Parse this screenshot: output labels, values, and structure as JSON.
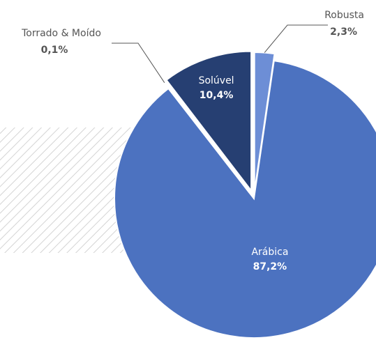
{
  "chart_data": {
    "type": "pie",
    "categories": [
      "Robusta",
      "Arábica",
      "Torrado & Moído",
      "Solúvel"
    ],
    "values": [
      2.3,
      87.2,
      0.1,
      10.4
    ],
    "value_labels": [
      "2,3%",
      "87,2%",
      "0,1%",
      "10,4%"
    ],
    "colors": [
      "#6d8ed6",
      "#4c72c0",
      "#3a5aa3",
      "#263f72"
    ]
  }
}
